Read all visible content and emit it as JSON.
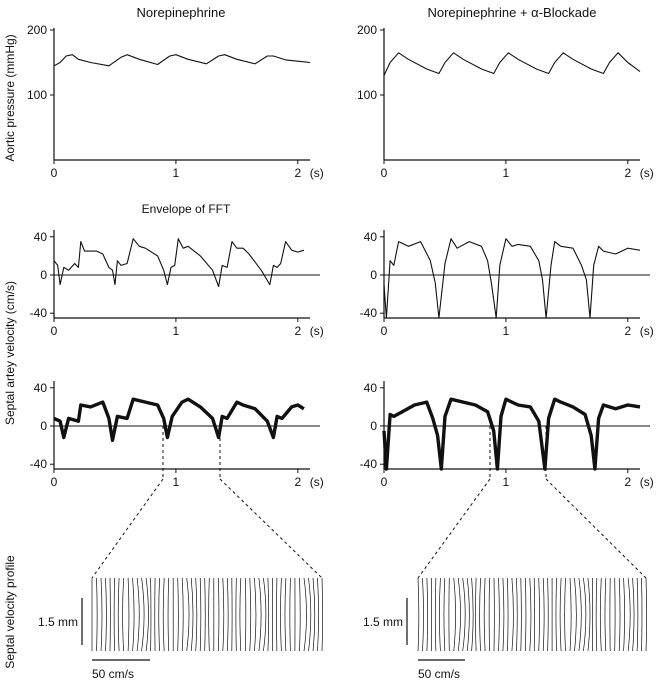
{
  "figure": {
    "left_title": "Norepinephrine",
    "right_title": "Norepinephrine + α-Blockade",
    "fft_label": "Envelope of FFT",
    "ylabel_pressure": "Aortic pressure (mmHg)",
    "ylabel_velocity": "Septal artey velocity (cm/s)",
    "ylabel_profile": "Septal velocity profile",
    "time_unit": "(s)",
    "scale_mm": "1.5 mm",
    "scale_cms": "50 cm/s"
  },
  "chart_data": [
    {
      "id": "pressure-left",
      "type": "line",
      "title": "Norepinephrine",
      "ylabel": "Aortic pressure (mmHg)",
      "xlim": [
        0,
        2.1
      ],
      "ylim": [
        0,
        200
      ],
      "x_ticks": [
        0,
        1,
        2
      ],
      "y_ticks": [
        100,
        200
      ],
      "series": [
        {
          "x": [
            0,
            0.05,
            0.1,
            0.15,
            0.2,
            0.3,
            0.45,
            0.55,
            0.6,
            0.7,
            0.85,
            0.95,
            1.0,
            1.1,
            1.25,
            1.35,
            1.4,
            1.5,
            1.65,
            1.75,
            1.8,
            1.9,
            2.05,
            2.1
          ],
          "y": [
            145,
            150,
            160,
            162,
            155,
            150,
            145,
            158,
            162,
            155,
            147,
            160,
            162,
            155,
            148,
            160,
            162,
            155,
            148,
            160,
            160,
            154,
            151,
            150
          ]
        }
      ]
    },
    {
      "id": "pressure-right",
      "type": "line",
      "title": "Norepinephrine + α-Blockade",
      "xlim": [
        0,
        2.1
      ],
      "ylim": [
        0,
        200
      ],
      "x_ticks": [
        0,
        1,
        2
      ],
      "y_ticks": [
        100,
        200
      ],
      "series": [
        {
          "x": [
            0,
            0.05,
            0.12,
            0.2,
            0.35,
            0.45,
            0.5,
            0.57,
            0.65,
            0.8,
            0.9,
            0.95,
            1.02,
            1.1,
            1.25,
            1.35,
            1.4,
            1.47,
            1.55,
            1.7,
            1.8,
            1.85,
            1.92,
            2.0,
            2.1
          ],
          "y": [
            130,
            150,
            165,
            155,
            140,
            133,
            150,
            165,
            155,
            140,
            133,
            150,
            165,
            155,
            140,
            133,
            150,
            165,
            155,
            140,
            133,
            150,
            165,
            150,
            136
          ]
        }
      ]
    },
    {
      "id": "fft-left",
      "type": "line",
      "title": "Envelope of FFT",
      "xlim": [
        0,
        2.1
      ],
      "ylim": [
        -45,
        45
      ],
      "x_ticks": [
        0,
        1,
        2
      ],
      "y_ticks": [
        -40,
        0,
        40
      ],
      "series": [
        {
          "x": [
            0,
            0.03,
            0.05,
            0.08,
            0.12,
            0.17,
            0.2,
            0.22,
            0.25,
            0.35,
            0.4,
            0.45,
            0.48,
            0.5,
            0.52,
            0.55,
            0.6,
            0.65,
            0.7,
            0.75,
            0.85,
            0.9,
            0.93,
            0.96,
            0.99,
            1.02,
            1.06,
            1.1,
            1.2,
            1.3,
            1.35,
            1.38,
            1.42,
            1.46,
            1.5,
            1.55,
            1.6,
            1.7,
            1.77,
            1.8,
            1.83,
            1.86,
            1.9,
            1.95,
            2.0,
            2.05
          ],
          "y": [
            15,
            10,
            -10,
            8,
            5,
            12,
            8,
            35,
            25,
            25,
            22,
            8,
            5,
            -10,
            15,
            10,
            12,
            38,
            30,
            28,
            20,
            5,
            -10,
            8,
            10,
            38,
            28,
            30,
            20,
            5,
            -12,
            10,
            8,
            35,
            28,
            28,
            22,
            5,
            -10,
            10,
            8,
            12,
            35,
            26,
            24,
            26
          ]
        }
      ]
    },
    {
      "id": "fft-right",
      "type": "line",
      "xlim": [
        0,
        2.1
      ],
      "ylim": [
        -45,
        45
      ],
      "x_ticks": [
        0,
        1,
        2
      ],
      "y_ticks": [
        -40,
        0,
        40
      ],
      "series": [
        {
          "x": [
            0,
            0.02,
            0.05,
            0.08,
            0.12,
            0.2,
            0.3,
            0.38,
            0.42,
            0.45,
            0.5,
            0.55,
            0.6,
            0.7,
            0.8,
            0.85,
            0.88,
            0.92,
            0.95,
            1.0,
            1.05,
            1.1,
            1.2,
            1.27,
            1.3,
            1.33,
            1.37,
            1.4,
            1.45,
            1.55,
            1.62,
            1.66,
            1.69,
            1.72,
            1.76,
            1.8,
            1.9,
            2.0,
            2.1
          ],
          "y": [
            -10,
            -45,
            15,
            10,
            35,
            30,
            35,
            15,
            -8,
            -45,
            12,
            38,
            28,
            35,
            30,
            15,
            -8,
            -45,
            10,
            38,
            30,
            32,
            30,
            15,
            -5,
            -45,
            10,
            35,
            30,
            28,
            10,
            -5,
            -45,
            10,
            30,
            25,
            22,
            28,
            26
          ]
        }
      ]
    },
    {
      "id": "vel-left",
      "type": "area",
      "ylabel": "Septal artey velocity (cm/s)",
      "xlim": [
        0,
        2.1
      ],
      "ylim": [
        -45,
        45
      ],
      "x_ticks": [
        0,
        1,
        2
      ],
      "y_ticks": [
        -40,
        0,
        40
      ],
      "series": [
        {
          "x": [
            0,
            0.05,
            0.08,
            0.12,
            0.2,
            0.22,
            0.3,
            0.4,
            0.45,
            0.48,
            0.52,
            0.6,
            0.65,
            0.75,
            0.85,
            0.9,
            0.93,
            0.97,
            1.05,
            1.1,
            1.2,
            1.3,
            1.35,
            1.38,
            1.42,
            1.5,
            1.55,
            1.65,
            1.75,
            1.8,
            1.83,
            1.87,
            1.95,
            2.0,
            2.05
          ],
          "y": [
            8,
            5,
            -12,
            8,
            5,
            22,
            20,
            25,
            8,
            -15,
            10,
            8,
            28,
            25,
            22,
            8,
            -12,
            10,
            25,
            28,
            20,
            8,
            -12,
            10,
            8,
            25,
            22,
            18,
            5,
            -12,
            10,
            8,
            20,
            22,
            18
          ]
        }
      ]
    },
    {
      "id": "vel-right",
      "type": "area",
      "xlim": [
        0,
        2.1
      ],
      "ylim": [
        -45,
        45
      ],
      "x_ticks": [
        0,
        1,
        2
      ],
      "y_ticks": [
        -40,
        0,
        40
      ],
      "series": [
        {
          "x": [
            0,
            0.02,
            0.05,
            0.08,
            0.15,
            0.25,
            0.35,
            0.4,
            0.44,
            0.47,
            0.5,
            0.55,
            0.65,
            0.75,
            0.85,
            0.9,
            0.93,
            0.96,
            1.0,
            1.1,
            1.2,
            1.27,
            1.32,
            1.35,
            1.4,
            1.45,
            1.55,
            1.65,
            1.7,
            1.73,
            1.76,
            1.8,
            1.9,
            2.0,
            2.1
          ],
          "y": [
            -5,
            -45,
            12,
            10,
            15,
            22,
            25,
            8,
            -10,
            -45,
            10,
            28,
            25,
            22,
            15,
            -5,
            -45,
            10,
            28,
            22,
            20,
            5,
            -45,
            8,
            28,
            25,
            20,
            12,
            -10,
            -45,
            8,
            22,
            18,
            22,
            20
          ]
        }
      ]
    }
  ]
}
